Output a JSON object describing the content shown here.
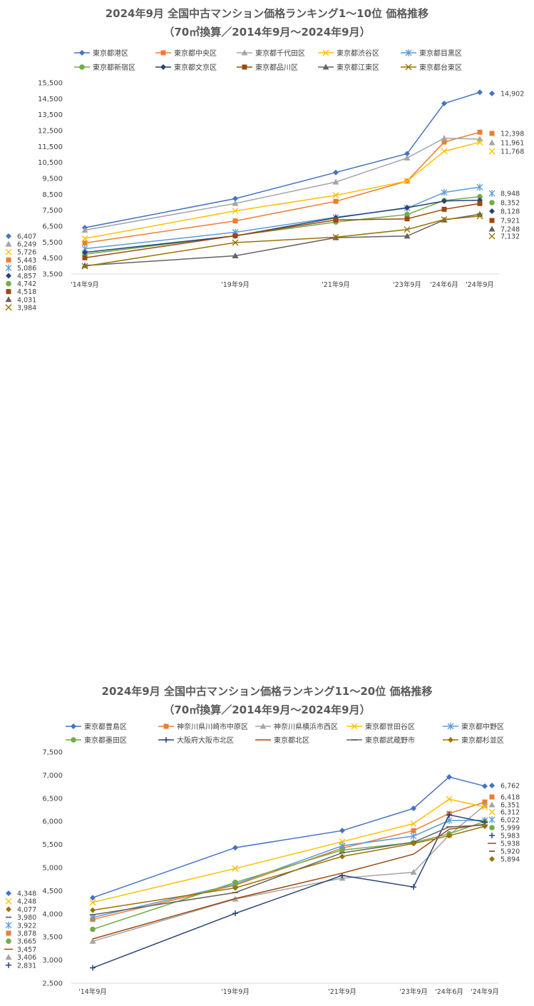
{
  "charts": [
    {
      "title_line1": "2024年9月 全国中古マンション価格ランキング1～10位 価格推移",
      "title_line2": "（70㎡換算／2014年9月～2024年9月）"
    },
    {
      "title_line1": "2024年9月 全国中古マンション価格ランキング11～20位 価格推移",
      "title_line2": "（70㎡換算／2014年9月～2024年9月）"
    }
  ],
  "chart_data": [
    {
      "type": "line",
      "x": [
        "'14年9月",
        "'19年9月",
        "'21年9月",
        "'23年9月",
        "'24年6月",
        "'24年9月"
      ],
      "ylim": [
        3500,
        15500
      ],
      "yticks": [
        3500,
        4500,
        5500,
        6500,
        7500,
        8500,
        9500,
        10500,
        11500,
        12500,
        13500,
        14500,
        15500
      ],
      "ytick_labels": [
        "3,500",
        "4,500",
        "5,500",
        "6,500",
        "7,500",
        "8,500",
        "9,500",
        "10,500",
        "11,500",
        "12,500",
        "13,500",
        "14,500",
        "15,500"
      ],
      "grid": false,
      "legend": "top",
      "series": [
        {
          "name": "東京都港区",
          "color": "#4472c4",
          "marker": "diamond",
          "values": [
            6407,
            8230,
            9870,
            11050,
            14200,
            14902
          ],
          "start_label": "6,407",
          "end_label": "14,902"
        },
        {
          "name": "東京都中央区",
          "color": "#ed7d31",
          "marker": "square",
          "values": [
            5443,
            6830,
            8060,
            9330,
            11780,
            12398
          ],
          "start_label": "5,443",
          "end_label": "12,398"
        },
        {
          "name": "東京都千代田区",
          "color": "#a5a5a5",
          "marker": "triangle",
          "values": [
            6249,
            7930,
            9270,
            10780,
            12020,
            11961
          ],
          "start_label": "6,249",
          "end_label": "11,961"
        },
        {
          "name": "東京都渋谷区",
          "color": "#ffc000",
          "marker": "x",
          "values": [
            5726,
            7460,
            8440,
            9330,
            11200,
            11768
          ],
          "start_label": "5,726",
          "end_label": "11,768"
        },
        {
          "name": "東京都目黒区",
          "color": "#5b9bd5",
          "marker": "star",
          "values": [
            5086,
            6120,
            7060,
            7630,
            8620,
            8948
          ],
          "start_label": "5,086",
          "end_label": "8,948"
        },
        {
          "name": "東京都新宿区",
          "color": "#70ad47",
          "marker": "circle",
          "values": [
            4742,
            5900,
            6760,
            7230,
            8110,
            8352
          ],
          "start_label": "4,742",
          "end_label": "8,352"
        },
        {
          "name": "東京都文京区",
          "color": "#264478",
          "marker": "diamond",
          "values": [
            4857,
            5890,
            7030,
            7660,
            8080,
            8128
          ],
          "start_label": "4,857",
          "end_label": "8,128"
        },
        {
          "name": "東京都品川区",
          "color": "#9e480e",
          "marker": "square",
          "values": [
            4518,
            5900,
            6890,
            6960,
            7560,
            7921
          ],
          "start_label": "4,518",
          "end_label": "7,921"
        },
        {
          "name": "東京都江東区",
          "color": "#636363",
          "marker": "triangle",
          "values": [
            4031,
            4640,
            5780,
            5880,
            6890,
            7248
          ],
          "start_label": "4,031",
          "end_label": "7,248"
        },
        {
          "name": "東京都台東区",
          "color": "#997300",
          "marker": "x",
          "values": [
            3984,
            5470,
            5810,
            6290,
            6920,
            7132
          ],
          "start_label": "3,984",
          "end_label": "7,132"
        }
      ]
    },
    {
      "type": "line",
      "x": [
        "'14年9月",
        "'19年9月",
        "'21年9月",
        "'23年9月",
        "'24年6月",
        "'24年9月"
      ],
      "ylim": [
        2500,
        7500
      ],
      "yticks": [
        2500,
        3000,
        3500,
        4000,
        4500,
        5000,
        5500,
        6000,
        6500,
        7000,
        7500
      ],
      "ytick_labels": [
        "2,500",
        "3,000",
        "3,500",
        "4,000",
        "4,500",
        "5,000",
        "5,500",
        "6,000",
        "6,500",
        "7,000",
        "7,500"
      ],
      "grid": false,
      "legend": "top",
      "series": [
        {
          "name": "東京都豊島区",
          "color": "#4472c4",
          "marker": "diamond",
          "values": [
            4348,
            5430,
            5800,
            6280,
            6960,
            6762
          ],
          "start_label": "4,348",
          "end_label": "6,762"
        },
        {
          "name": "神奈川県川崎市中原区",
          "color": "#ed7d31",
          "marker": "square",
          "values": [
            3878,
            4620,
            5420,
            5800,
            6170,
            6418
          ],
          "start_label": "3,878",
          "end_label": "6,418"
        },
        {
          "name": "神奈川県横浜市西区",
          "color": "#a5a5a5",
          "marker": "triangle",
          "values": [
            3406,
            4320,
            4770,
            4900,
            5700,
            6351
          ],
          "start_label": "3,406",
          "end_label": "6,351"
        },
        {
          "name": "東京都世田谷区",
          "color": "#ffc000",
          "marker": "x",
          "values": [
            4248,
            4980,
            5560,
            5950,
            6480,
            6312
          ],
          "start_label": "4,248",
          "end_label": "6,312"
        },
        {
          "name": "東京都中野区",
          "color": "#5b9bd5",
          "marker": "star",
          "values": [
            3922,
            4640,
            5470,
            5680,
            6020,
            6022
          ],
          "start_label": "3,922",
          "end_label": "6,022"
        },
        {
          "name": "東京都墨田区",
          "color": "#70ad47",
          "marker": "circle",
          "values": [
            3665,
            4680,
            5380,
            5540,
            5730,
            5999
          ],
          "start_label": "3,665",
          "end_label": "5,999"
        },
        {
          "name": "大阪府大阪市北区",
          "color": "#264478",
          "marker": "plus",
          "values": [
            2831,
            4010,
            4830,
            4580,
            6140,
            5983
          ],
          "start_label": "2,831",
          "end_label": "5,983"
        },
        {
          "name": "東京都北区",
          "color": "#9e480e",
          "marker": "none",
          "values": [
            3457,
            4330,
            4880,
            5290,
            5830,
            5938
          ],
          "start_label": "3,457",
          "end_label": "5,938"
        },
        {
          "name": "東京都武蔵野市",
          "color": "#636363",
          "marker": "dash",
          "values": [
            3980,
            4460,
            5320,
            5550,
            5880,
            5920
          ],
          "start_label": "3,980",
          "end_label": "5,920"
        },
        {
          "name": "東京都杉並区",
          "color": "#997300",
          "marker": "diamond",
          "values": [
            4077,
            4560,
            5240,
            5520,
            5690,
            5894
          ],
          "start_label": "4,077",
          "end_label": "5,894"
        }
      ]
    }
  ]
}
